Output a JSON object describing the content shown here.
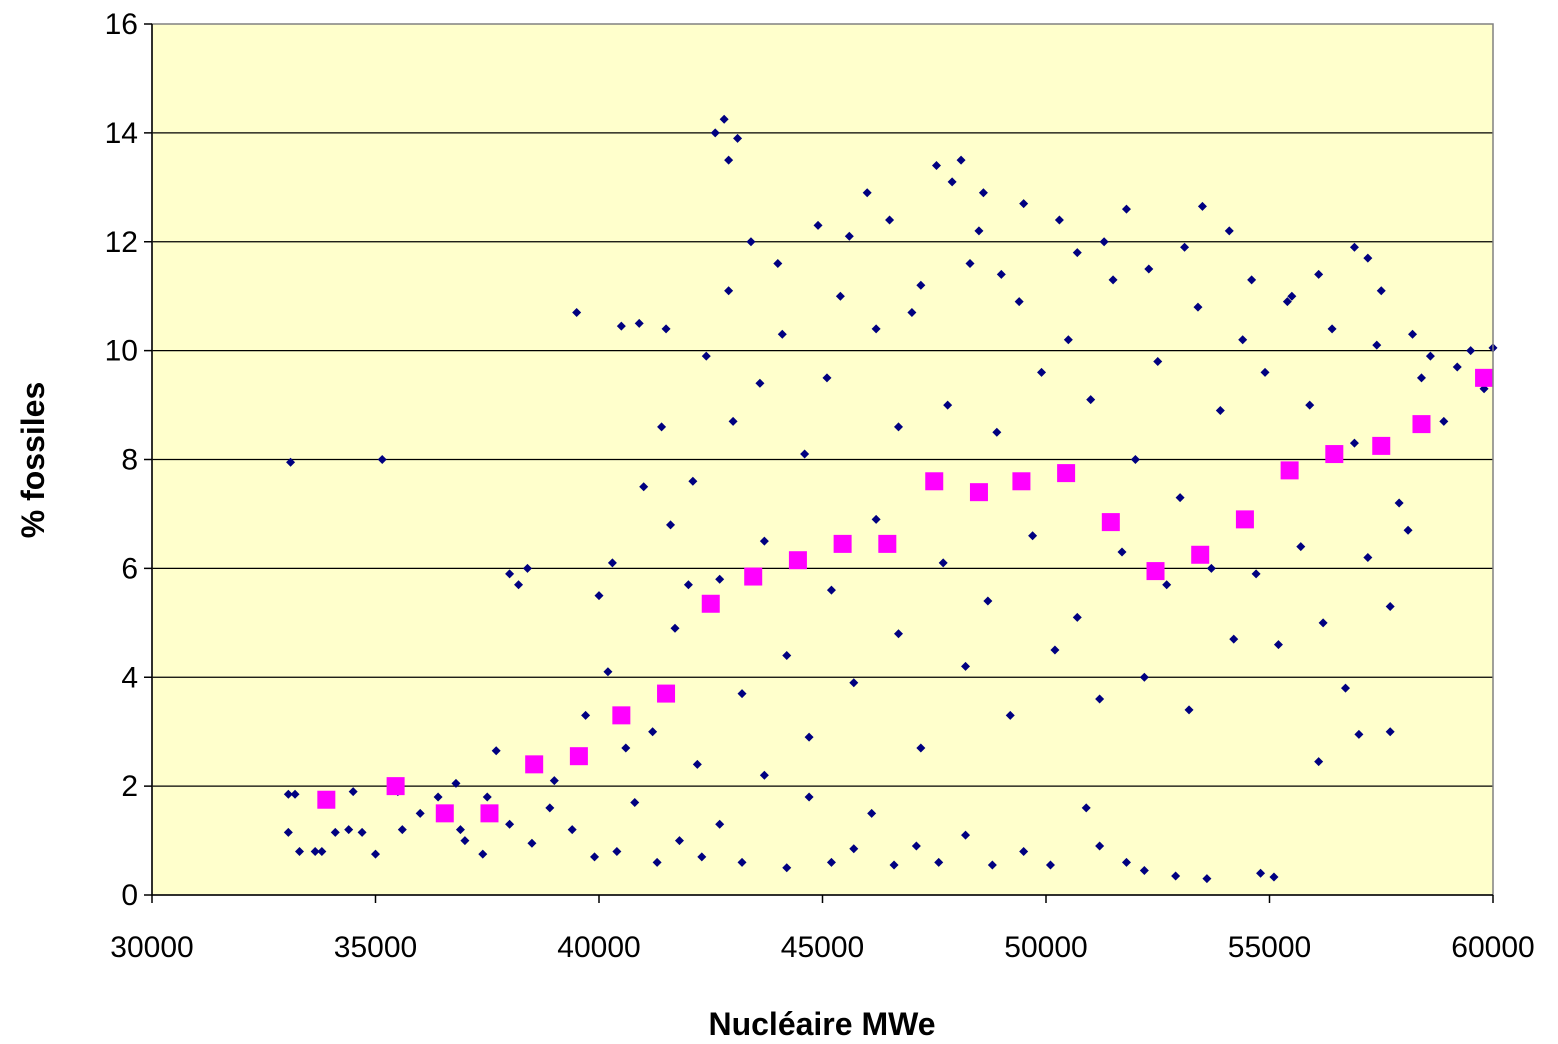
{
  "chart_data": {
    "type": "scatter",
    "title": "",
    "xlabel": "Nucléaire MWe",
    "ylabel": "% fossiles",
    "xlim": [
      30000,
      60000
    ],
    "ylim": [
      0,
      16
    ],
    "xticks": [
      30000,
      35000,
      40000,
      45000,
      50000,
      55000,
      60000
    ],
    "yticks": [
      0,
      2,
      4,
      6,
      8,
      10,
      12,
      14,
      16
    ],
    "grid": "horizontal",
    "plot_background": "#FFFFCC",
    "series": [
      {
        "marker": "diamond",
        "color": "#000080",
        "points": [
          [
            33100,
            7.95
          ],
          [
            35150,
            8.0
          ],
          [
            39500,
            10.7
          ],
          [
            33050,
            1.85
          ],
          [
            33200,
            1.85
          ],
          [
            33050,
            1.15
          ],
          [
            33300,
            0.8
          ],
          [
            33650,
            0.8
          ],
          [
            33800,
            0.8
          ],
          [
            34100,
            1.15
          ],
          [
            34500,
            1.9
          ],
          [
            34700,
            1.15
          ],
          [
            35000,
            0.75
          ],
          [
            35600,
            1.2
          ],
          [
            36400,
            1.8
          ],
          [
            36800,
            2.05
          ],
          [
            36900,
            1.2
          ],
          [
            37400,
            0.75
          ],
          [
            37500,
            1.8
          ],
          [
            37700,
            2.65
          ],
          [
            38000,
            5.9
          ],
          [
            38200,
            5.7
          ],
          [
            38400,
            6.0
          ],
          [
            40500,
            10.45
          ],
          [
            40900,
            10.5
          ],
          [
            41500,
            10.4
          ],
          [
            42000,
            5.7
          ],
          [
            42600,
            14.0
          ],
          [
            42800,
            14.25
          ],
          [
            43100,
            13.9
          ],
          [
            42900,
            13.5
          ],
          [
            47550,
            13.4
          ],
          [
            47900,
            13.1
          ],
          [
            48100,
            13.5
          ],
          [
            48600,
            12.9
          ],
          [
            49500,
            12.7
          ],
          [
            50300,
            12.4
          ],
          [
            51800,
            12.6
          ],
          [
            53500,
            12.65
          ],
          [
            54100,
            12.2
          ],
          [
            56900,
            11.9
          ],
          [
            57200,
            11.7
          ],
          [
            59500,
            10.0
          ],
          [
            60000,
            10.05
          ],
          [
            59800,
            9.3
          ],
          [
            57000,
            2.95
          ],
          [
            57700,
            3.0
          ],
          [
            56100,
            2.45
          ],
          [
            55100,
            0.33
          ],
          [
            54800,
            0.4
          ],
          [
            53600,
            0.3
          ],
          [
            52900,
            0.35
          ],
          [
            52200,
            0.45
          ],
          [
            51800,
            0.6
          ],
          [
            51200,
            0.9
          ],
          [
            50900,
            1.6
          ],
          [
            50100,
            0.55
          ],
          [
            49500,
            0.8
          ],
          [
            48800,
            0.55
          ],
          [
            48200,
            1.1
          ],
          [
            47600,
            0.6
          ],
          [
            47100,
            0.9
          ],
          [
            46600,
            0.55
          ],
          [
            46100,
            1.5
          ],
          [
            45700,
            0.85
          ],
          [
            45200,
            0.6
          ],
          [
            44700,
            1.8
          ],
          [
            44200,
            0.5
          ],
          [
            43700,
            2.2
          ],
          [
            43200,
            0.6
          ],
          [
            42700,
            1.3
          ],
          [
            42300,
            0.7
          ],
          [
            41800,
            1.0
          ],
          [
            41300,
            0.6
          ],
          [
            40800,
            1.7
          ],
          [
            40400,
            0.8
          ],
          [
            39900,
            0.7
          ],
          [
            39400,
            1.2
          ],
          [
            38900,
            1.6
          ],
          [
            38500,
            0.95
          ],
          [
            40200,
            4.1
          ],
          [
            41000,
            7.5
          ],
          [
            41600,
            6.8
          ],
          [
            42400,
            9.9
          ],
          [
            43000,
            8.7
          ],
          [
            43600,
            9.4
          ],
          [
            44100,
            10.3
          ],
          [
            44600,
            8.1
          ],
          [
            45100,
            9.5
          ],
          [
            45600,
            12.1
          ],
          [
            46200,
            10.4
          ],
          [
            46700,
            8.6
          ],
          [
            47200,
            11.2
          ],
          [
            47800,
            9.0
          ],
          [
            48300,
            11.6
          ],
          [
            48900,
            8.5
          ],
          [
            49400,
            10.9
          ],
          [
            49900,
            9.6
          ],
          [
            50500,
            10.2
          ],
          [
            51000,
            9.1
          ],
          [
            51500,
            11.3
          ],
          [
            52000,
            8.0
          ],
          [
            52500,
            9.8
          ],
          [
            53000,
            7.3
          ],
          [
            53400,
            10.8
          ],
          [
            53900,
            8.9
          ],
          [
            54400,
            10.2
          ],
          [
            54900,
            9.6
          ],
          [
            55400,
            10.9
          ],
          [
            55900,
            9.0
          ],
          [
            56400,
            10.4
          ],
          [
            56900,
            8.3
          ],
          [
            57400,
            10.1
          ],
          [
            57900,
            7.2
          ],
          [
            58400,
            9.5
          ],
          [
            58900,
            8.7
          ],
          [
            41200,
            3.0
          ],
          [
            41700,
            4.9
          ],
          [
            42200,
            2.4
          ],
          [
            42700,
            5.8
          ],
          [
            43200,
            3.7
          ],
          [
            43700,
            6.5
          ],
          [
            44200,
            4.4
          ],
          [
            44700,
            2.9
          ],
          [
            45200,
            5.6
          ],
          [
            45700,
            3.9
          ],
          [
            46200,
            6.9
          ],
          [
            46700,
            4.8
          ],
          [
            47200,
            2.7
          ],
          [
            47700,
            6.1
          ],
          [
            48200,
            4.2
          ],
          [
            48700,
            5.4
          ],
          [
            49200,
            3.3
          ],
          [
            49700,
            6.6
          ],
          [
            50200,
            4.5
          ],
          [
            50700,
            5.1
          ],
          [
            51200,
            3.6
          ],
          [
            51700,
            6.3
          ],
          [
            52200,
            4.0
          ],
          [
            52700,
            5.7
          ],
          [
            53200,
            3.4
          ],
          [
            53700,
            6.0
          ],
          [
            54200,
            4.7
          ],
          [
            54700,
            5.9
          ],
          [
            55200,
            4.6
          ],
          [
            55700,
            6.4
          ],
          [
            56200,
            5.0
          ],
          [
            56700,
            3.8
          ],
          [
            57200,
            6.2
          ],
          [
            57700,
            5.3
          ],
          [
            58100,
            6.7
          ],
          [
            40000,
            5.5
          ],
          [
            40600,
            2.7
          ],
          [
            39000,
            2.1
          ],
          [
            38000,
            1.3
          ],
          [
            37000,
            1.0
          ],
          [
            36000,
            1.5
          ],
          [
            35500,
            1.9
          ],
          [
            34400,
            1.2
          ],
          [
            39700,
            3.3
          ],
          [
            40300,
            6.1
          ],
          [
            41400,
            8.6
          ],
          [
            42100,
            7.6
          ],
          [
            42900,
            11.1
          ],
          [
            43400,
            12.0
          ],
          [
            44000,
            11.6
          ],
          [
            44900,
            12.3
          ],
          [
            45400,
            11.0
          ],
          [
            46000,
            12.9
          ],
          [
            46500,
            12.4
          ],
          [
            47000,
            10.7
          ],
          [
            48500,
            12.2
          ],
          [
            49000,
            11.4
          ],
          [
            50700,
            11.8
          ],
          [
            51300,
            12.0
          ],
          [
            52300,
            11.5
          ],
          [
            53100,
            11.9
          ],
          [
            54600,
            11.3
          ],
          [
            55500,
            11.0
          ],
          [
            56100,
            11.4
          ],
          [
            57500,
            11.1
          ],
          [
            58200,
            10.3
          ],
          [
            58600,
            9.9
          ],
          [
            59200,
            9.7
          ]
        ]
      },
      {
        "marker": "square",
        "color": "#FF00FF",
        "points": [
          [
            33900,
            1.75
          ],
          [
            35450,
            2.0
          ],
          [
            36550,
            1.5
          ],
          [
            37550,
            1.5
          ],
          [
            38550,
            2.4
          ],
          [
            39550,
            2.55
          ],
          [
            40500,
            3.3
          ],
          [
            41500,
            3.7
          ],
          [
            42500,
            5.35
          ],
          [
            43450,
            5.85
          ],
          [
            44450,
            6.15
          ],
          [
            45450,
            6.45
          ],
          [
            46450,
            6.45
          ],
          [
            47500,
            7.6
          ],
          [
            48500,
            7.4
          ],
          [
            49450,
            7.6
          ],
          [
            50450,
            7.75
          ],
          [
            51450,
            6.85
          ],
          [
            52450,
            5.95
          ],
          [
            53450,
            6.25
          ],
          [
            54450,
            6.9
          ],
          [
            55450,
            7.8
          ],
          [
            56450,
            8.1
          ],
          [
            57500,
            8.25
          ],
          [
            58400,
            8.65
          ],
          [
            59800,
            9.5
          ]
        ]
      }
    ]
  }
}
